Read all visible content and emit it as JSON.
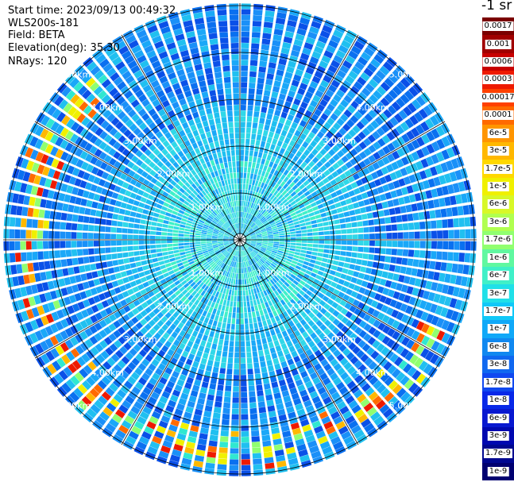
{
  "header": {
    "start_time_label": "Start time: 2023/09/13 00:49:32",
    "instrument": "WLS200s-181",
    "field_label": "Field: BETA",
    "elevation_label": "Elevation(deg): 35.30",
    "nrays_label": "NRays: 120"
  },
  "colorbar": {
    "unit": "-1 sr",
    "labels": [
      "0.0017",
      "0.001",
      "0.0006",
      "0.0003",
      "0.00017",
      "0.0001",
      "6e-5",
      "3e-5",
      "1.7e-5",
      "1e-5",
      "6e-6",
      "3e-6",
      "1.7e-6",
      "1e-6",
      "6e-7",
      "3e-7",
      "1.7e-7",
      "1e-7",
      "6e-8",
      "3e-8",
      "1.7e-8",
      "1e-8",
      "6e-9",
      "3e-9",
      "1.7e-9",
      "1e-9"
    ],
    "colors": [
      "#7a0000",
      "#a00000",
      "#c80000",
      "#ee1a00",
      "#ff4000",
      "#ff6a00",
      "#ff9500",
      "#ffb800",
      "#ffd800",
      "#f0f000",
      "#d8f828",
      "#b0ff50",
      "#90ff70",
      "#60f8a0",
      "#40f0c8",
      "#20e0e8",
      "#10c8f8",
      "#10a8f8",
      "#1088f0",
      "#1068f0",
      "#1048f0",
      "#0828e8",
      "#0818d0",
      "#0008b0",
      "#000890",
      "#000070"
    ]
  },
  "chart_data": {
    "type": "polar ppi",
    "field": "BETA",
    "n_rays": 120,
    "elevation_deg": 35.3,
    "range_rings_km": [
      1.0,
      2.0,
      3.0,
      4.0,
      5.0
    ],
    "ring_labels": [
      "1.00km",
      "2.00km",
      "3.00km",
      "4.00km",
      "5.00km"
    ],
    "max_range_km": 5.05,
    "spokes": 12,
    "dominant_colors": [
      "#0a70f0",
      "#1aa0f8",
      "#2fd0f0",
      "#40f0c8"
    ],
    "high_backscatter_arc": {
      "description_ranges_km": [
        4.1,
        4.9
      ],
      "azimuth_deg_range": [
        115,
        320
      ]
    }
  }
}
